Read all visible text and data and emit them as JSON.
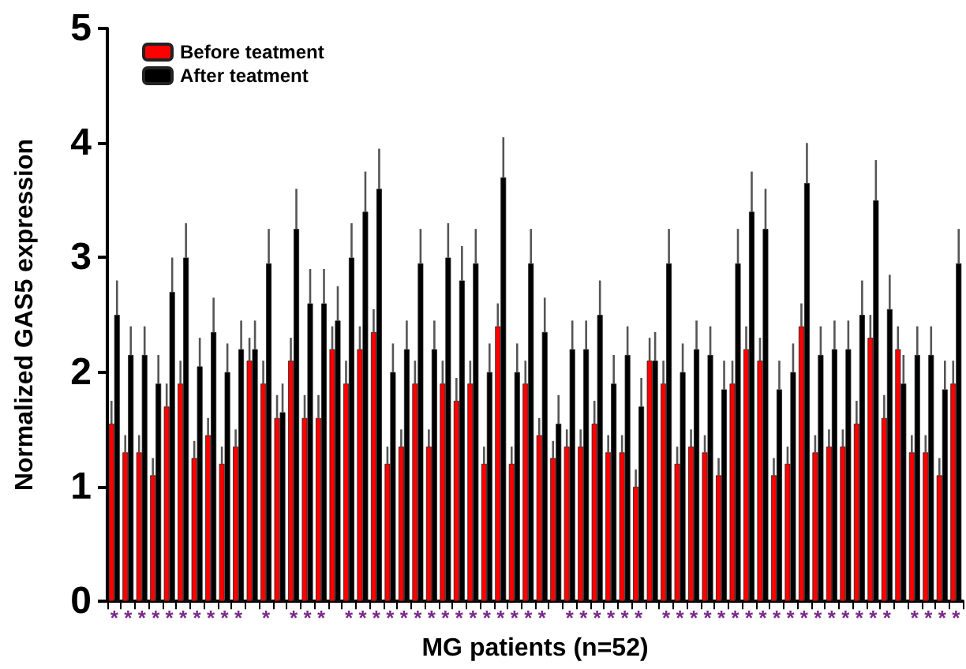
{
  "chart_data": {
    "type": "bar",
    "xlabel": "MG patients (n=52)",
    "ylabel": "Normalized GAS5 expression",
    "categories": [
      "*",
      "*",
      "*",
      "*",
      "*",
      "*",
      "*",
      "*",
      "*",
      "*",
      null,
      "*",
      null,
      "*",
      "*",
      "*",
      null,
      "*",
      "*",
      "*",
      "*",
      "*",
      "*",
      "*",
      "*",
      "*",
      "*",
      "*",
      "*",
      "*",
      "*",
      "*",
      null,
      "*",
      "*",
      "*",
      "*",
      "*",
      "*",
      null,
      "*",
      "*",
      "*",
      "*",
      "*",
      "*",
      "*",
      "*",
      "*",
      "*",
      "*",
      "*",
      "*",
      "*",
      "*",
      "*",
      "*",
      null,
      "*",
      "*",
      "*",
      "*"
    ],
    "series": [
      {
        "name": "Before teatment",
        "color": "#ff0000",
        "values": [
          1.55,
          1.3,
          1.3,
          1.1,
          1.7,
          1.9,
          1.25,
          1.45,
          1.2,
          1.35,
          2.1,
          1.9,
          1.6,
          2.1,
          1.6,
          1.6,
          2.2,
          1.9,
          2.2,
          2.35,
          1.2,
          1.35,
          1.9,
          1.35,
          1.9,
          1.75,
          1.9,
          1.2,
          2.4,
          1.2,
          1.9,
          1.45,
          1.25,
          1.35,
          1.35,
          1.55,
          1.3,
          1.3,
          1.0,
          2.1,
          1.9,
          1.2,
          1.35,
          1.3,
          1.1,
          1.9,
          2.2,
          2.1,
          1.1,
          1.2,
          2.4,
          1.3,
          1.35,
          1.35,
          1.55,
          2.3,
          1.6,
          2.2,
          1.3,
          1.3,
          1.1,
          1.9
        ],
        "errors": [
          [
            1.55,
            1.75
          ],
          [
            1.3,
            1.45
          ],
          [
            1.3,
            1.45
          ],
          [
            1.1,
            1.25
          ],
          [
            1.7,
            1.9
          ],
          [
            1.9,
            2.1
          ],
          [
            1.25,
            1.4
          ],
          [
            1.45,
            1.6
          ],
          [
            1.2,
            1.35
          ],
          [
            1.35,
            1.5
          ],
          [
            2.1,
            2.3
          ],
          [
            1.9,
            2.1
          ],
          [
            1.6,
            1.8
          ],
          [
            2.1,
            2.3
          ],
          [
            1.6,
            1.8
          ],
          [
            1.6,
            1.8
          ],
          [
            2.2,
            2.4
          ],
          [
            1.9,
            2.1
          ],
          [
            2.2,
            2.4
          ],
          [
            2.35,
            2.55
          ],
          [
            1.2,
            1.35
          ],
          [
            1.35,
            1.5
          ],
          [
            1.9,
            2.1
          ],
          [
            1.35,
            1.5
          ],
          [
            1.9,
            2.1
          ],
          [
            1.75,
            1.95
          ],
          [
            1.9,
            2.1
          ],
          [
            1.2,
            1.35
          ],
          [
            2.4,
            2.6
          ],
          [
            1.2,
            1.35
          ],
          [
            1.9,
            2.1
          ],
          [
            1.45,
            1.6
          ],
          [
            1.25,
            1.4
          ],
          [
            1.35,
            1.5
          ],
          [
            1.35,
            1.5
          ],
          [
            1.55,
            1.75
          ],
          [
            1.3,
            1.45
          ],
          [
            1.3,
            1.45
          ],
          [
            1.0,
            1.15
          ],
          [
            2.1,
            2.3
          ],
          [
            1.9,
            2.1
          ],
          [
            1.2,
            1.35
          ],
          [
            1.35,
            1.5
          ],
          [
            1.3,
            1.45
          ],
          [
            1.1,
            1.25
          ],
          [
            1.9,
            2.1
          ],
          [
            2.2,
            2.4
          ],
          [
            2.1,
            2.3
          ],
          [
            1.1,
            1.25
          ],
          [
            1.2,
            1.35
          ],
          [
            2.4,
            2.6
          ],
          [
            1.3,
            1.45
          ],
          [
            1.35,
            1.5
          ],
          [
            1.35,
            1.5
          ],
          [
            1.55,
            1.75
          ],
          [
            2.3,
            2.5
          ],
          [
            1.6,
            1.8
          ],
          [
            2.2,
            2.4
          ],
          [
            1.3,
            1.45
          ],
          [
            1.3,
            1.45
          ],
          [
            1.1,
            1.25
          ],
          [
            1.9,
            2.1
          ]
        ]
      },
      {
        "name": "After teatment",
        "color": "#000000",
        "values": [
          2.5,
          2.15,
          2.15,
          1.9,
          2.7,
          3.0,
          2.05,
          2.35,
          2.0,
          2.2,
          2.2,
          2.95,
          1.65,
          3.25,
          2.6,
          2.6,
          2.45,
          3.0,
          3.4,
          3.6,
          2.0,
          2.2,
          2.95,
          2.2,
          3.0,
          2.8,
          2.95,
          2.0,
          3.7,
          2.0,
          2.95,
          2.35,
          1.55,
          2.2,
          2.2,
          2.5,
          1.9,
          2.15,
          1.7,
          2.1,
          2.95,
          2.0,
          2.2,
          2.15,
          1.85,
          2.95,
          3.4,
          3.25,
          1.85,
          2.0,
          3.65,
          2.15,
          2.2,
          2.2,
          2.5,
          3.5,
          2.55,
          1.9,
          2.15,
          2.15,
          1.85,
          2.95
        ],
        "errors": [
          [
            2.5,
            2.8
          ],
          [
            2.15,
            2.4
          ],
          [
            2.15,
            2.4
          ],
          [
            1.9,
            2.15
          ],
          [
            2.7,
            3.0
          ],
          [
            3.0,
            3.3
          ],
          [
            2.05,
            2.3
          ],
          [
            2.35,
            2.65
          ],
          [
            2.0,
            2.25
          ],
          [
            2.2,
            2.45
          ],
          [
            2.2,
            2.45
          ],
          [
            2.95,
            3.25
          ],
          [
            1.65,
            1.9
          ],
          [
            3.25,
            3.6
          ],
          [
            2.6,
            2.9
          ],
          [
            2.6,
            2.9
          ],
          [
            2.45,
            2.75
          ],
          [
            3.0,
            3.3
          ],
          [
            3.4,
            3.75
          ],
          [
            3.6,
            3.95
          ],
          [
            2.0,
            2.25
          ],
          [
            2.2,
            2.45
          ],
          [
            2.95,
            3.25
          ],
          [
            2.2,
            2.45
          ],
          [
            3.0,
            3.3
          ],
          [
            2.8,
            3.1
          ],
          [
            2.95,
            3.25
          ],
          [
            2.0,
            2.25
          ],
          [
            3.7,
            4.05
          ],
          [
            2.0,
            2.25
          ],
          [
            2.95,
            3.25
          ],
          [
            2.35,
            2.65
          ],
          [
            1.55,
            1.8
          ],
          [
            2.2,
            2.45
          ],
          [
            2.2,
            2.45
          ],
          [
            2.5,
            2.8
          ],
          [
            1.9,
            2.15
          ],
          [
            2.15,
            2.4
          ],
          [
            1.7,
            1.95
          ],
          [
            2.1,
            2.35
          ],
          [
            2.95,
            3.25
          ],
          [
            2.0,
            2.25
          ],
          [
            2.2,
            2.45
          ],
          [
            2.15,
            2.4
          ],
          [
            1.85,
            2.1
          ],
          [
            2.95,
            3.25
          ],
          [
            3.4,
            3.75
          ],
          [
            3.25,
            3.6
          ],
          [
            1.85,
            2.1
          ],
          [
            2.0,
            2.25
          ],
          [
            3.65,
            4.0
          ],
          [
            2.15,
            2.4
          ],
          [
            2.2,
            2.45
          ],
          [
            2.2,
            2.45
          ],
          [
            2.5,
            2.8
          ],
          [
            3.5,
            3.85
          ],
          [
            2.55,
            2.85
          ],
          [
            1.9,
            2.15
          ],
          [
            2.15,
            2.4
          ],
          [
            2.15,
            2.4
          ],
          [
            1.85,
            2.1
          ],
          [
            2.95,
            3.25
          ]
        ]
      }
    ],
    "ylim": [
      0,
      5
    ],
    "yticks": [
      0,
      1,
      2,
      3,
      4,
      5
    ],
    "grid": false,
    "legend": "top left"
  }
}
